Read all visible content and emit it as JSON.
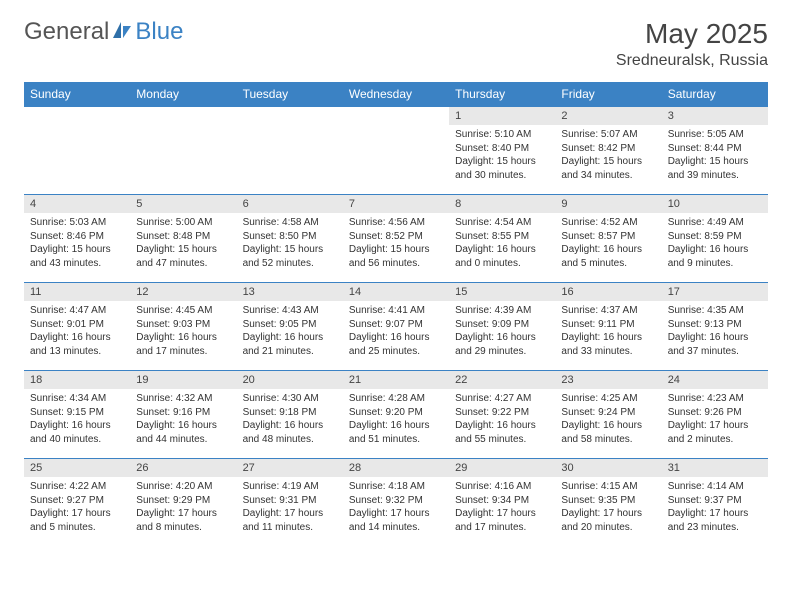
{
  "brand": {
    "part1": "General",
    "part2": "Blue"
  },
  "title": "May 2025",
  "location": "Sredneuralsk, Russia",
  "colors": {
    "header_bg": "#3b82c4",
    "header_text": "#ffffff",
    "daynum_bg": "#e8e8e8",
    "border": "#3b82c4",
    "text": "#333333",
    "title_text": "#444444"
  },
  "day_names": [
    "Sunday",
    "Monday",
    "Tuesday",
    "Wednesday",
    "Thursday",
    "Friday",
    "Saturday"
  ],
  "weeks": [
    [
      null,
      null,
      null,
      null,
      {
        "n": "1",
        "sr": "Sunrise: 5:10 AM",
        "ss": "Sunset: 8:40 PM",
        "d1": "Daylight: 15 hours",
        "d2": "and 30 minutes."
      },
      {
        "n": "2",
        "sr": "Sunrise: 5:07 AM",
        "ss": "Sunset: 8:42 PM",
        "d1": "Daylight: 15 hours",
        "d2": "and 34 minutes."
      },
      {
        "n": "3",
        "sr": "Sunrise: 5:05 AM",
        "ss": "Sunset: 8:44 PM",
        "d1": "Daylight: 15 hours",
        "d2": "and 39 minutes."
      }
    ],
    [
      {
        "n": "4",
        "sr": "Sunrise: 5:03 AM",
        "ss": "Sunset: 8:46 PM",
        "d1": "Daylight: 15 hours",
        "d2": "and 43 minutes."
      },
      {
        "n": "5",
        "sr": "Sunrise: 5:00 AM",
        "ss": "Sunset: 8:48 PM",
        "d1": "Daylight: 15 hours",
        "d2": "and 47 minutes."
      },
      {
        "n": "6",
        "sr": "Sunrise: 4:58 AM",
        "ss": "Sunset: 8:50 PM",
        "d1": "Daylight: 15 hours",
        "d2": "and 52 minutes."
      },
      {
        "n": "7",
        "sr": "Sunrise: 4:56 AM",
        "ss": "Sunset: 8:52 PM",
        "d1": "Daylight: 15 hours",
        "d2": "and 56 minutes."
      },
      {
        "n": "8",
        "sr": "Sunrise: 4:54 AM",
        "ss": "Sunset: 8:55 PM",
        "d1": "Daylight: 16 hours",
        "d2": "and 0 minutes."
      },
      {
        "n": "9",
        "sr": "Sunrise: 4:52 AM",
        "ss": "Sunset: 8:57 PM",
        "d1": "Daylight: 16 hours",
        "d2": "and 5 minutes."
      },
      {
        "n": "10",
        "sr": "Sunrise: 4:49 AM",
        "ss": "Sunset: 8:59 PM",
        "d1": "Daylight: 16 hours",
        "d2": "and 9 minutes."
      }
    ],
    [
      {
        "n": "11",
        "sr": "Sunrise: 4:47 AM",
        "ss": "Sunset: 9:01 PM",
        "d1": "Daylight: 16 hours",
        "d2": "and 13 minutes."
      },
      {
        "n": "12",
        "sr": "Sunrise: 4:45 AM",
        "ss": "Sunset: 9:03 PM",
        "d1": "Daylight: 16 hours",
        "d2": "and 17 minutes."
      },
      {
        "n": "13",
        "sr": "Sunrise: 4:43 AM",
        "ss": "Sunset: 9:05 PM",
        "d1": "Daylight: 16 hours",
        "d2": "and 21 minutes."
      },
      {
        "n": "14",
        "sr": "Sunrise: 4:41 AM",
        "ss": "Sunset: 9:07 PM",
        "d1": "Daylight: 16 hours",
        "d2": "and 25 minutes."
      },
      {
        "n": "15",
        "sr": "Sunrise: 4:39 AM",
        "ss": "Sunset: 9:09 PM",
        "d1": "Daylight: 16 hours",
        "d2": "and 29 minutes."
      },
      {
        "n": "16",
        "sr": "Sunrise: 4:37 AM",
        "ss": "Sunset: 9:11 PM",
        "d1": "Daylight: 16 hours",
        "d2": "and 33 minutes."
      },
      {
        "n": "17",
        "sr": "Sunrise: 4:35 AM",
        "ss": "Sunset: 9:13 PM",
        "d1": "Daylight: 16 hours",
        "d2": "and 37 minutes."
      }
    ],
    [
      {
        "n": "18",
        "sr": "Sunrise: 4:34 AM",
        "ss": "Sunset: 9:15 PM",
        "d1": "Daylight: 16 hours",
        "d2": "and 40 minutes."
      },
      {
        "n": "19",
        "sr": "Sunrise: 4:32 AM",
        "ss": "Sunset: 9:16 PM",
        "d1": "Daylight: 16 hours",
        "d2": "and 44 minutes."
      },
      {
        "n": "20",
        "sr": "Sunrise: 4:30 AM",
        "ss": "Sunset: 9:18 PM",
        "d1": "Daylight: 16 hours",
        "d2": "and 48 minutes."
      },
      {
        "n": "21",
        "sr": "Sunrise: 4:28 AM",
        "ss": "Sunset: 9:20 PM",
        "d1": "Daylight: 16 hours",
        "d2": "and 51 minutes."
      },
      {
        "n": "22",
        "sr": "Sunrise: 4:27 AM",
        "ss": "Sunset: 9:22 PM",
        "d1": "Daylight: 16 hours",
        "d2": "and 55 minutes."
      },
      {
        "n": "23",
        "sr": "Sunrise: 4:25 AM",
        "ss": "Sunset: 9:24 PM",
        "d1": "Daylight: 16 hours",
        "d2": "and 58 minutes."
      },
      {
        "n": "24",
        "sr": "Sunrise: 4:23 AM",
        "ss": "Sunset: 9:26 PM",
        "d1": "Daylight: 17 hours",
        "d2": "and 2 minutes."
      }
    ],
    [
      {
        "n": "25",
        "sr": "Sunrise: 4:22 AM",
        "ss": "Sunset: 9:27 PM",
        "d1": "Daylight: 17 hours",
        "d2": "and 5 minutes."
      },
      {
        "n": "26",
        "sr": "Sunrise: 4:20 AM",
        "ss": "Sunset: 9:29 PM",
        "d1": "Daylight: 17 hours",
        "d2": "and 8 minutes."
      },
      {
        "n": "27",
        "sr": "Sunrise: 4:19 AM",
        "ss": "Sunset: 9:31 PM",
        "d1": "Daylight: 17 hours",
        "d2": "and 11 minutes."
      },
      {
        "n": "28",
        "sr": "Sunrise: 4:18 AM",
        "ss": "Sunset: 9:32 PM",
        "d1": "Daylight: 17 hours",
        "d2": "and 14 minutes."
      },
      {
        "n": "29",
        "sr": "Sunrise: 4:16 AM",
        "ss": "Sunset: 9:34 PM",
        "d1": "Daylight: 17 hours",
        "d2": "and 17 minutes."
      },
      {
        "n": "30",
        "sr": "Sunrise: 4:15 AM",
        "ss": "Sunset: 9:35 PM",
        "d1": "Daylight: 17 hours",
        "d2": "and 20 minutes."
      },
      {
        "n": "31",
        "sr": "Sunrise: 4:14 AM",
        "ss": "Sunset: 9:37 PM",
        "d1": "Daylight: 17 hours",
        "d2": "and 23 minutes."
      }
    ]
  ]
}
